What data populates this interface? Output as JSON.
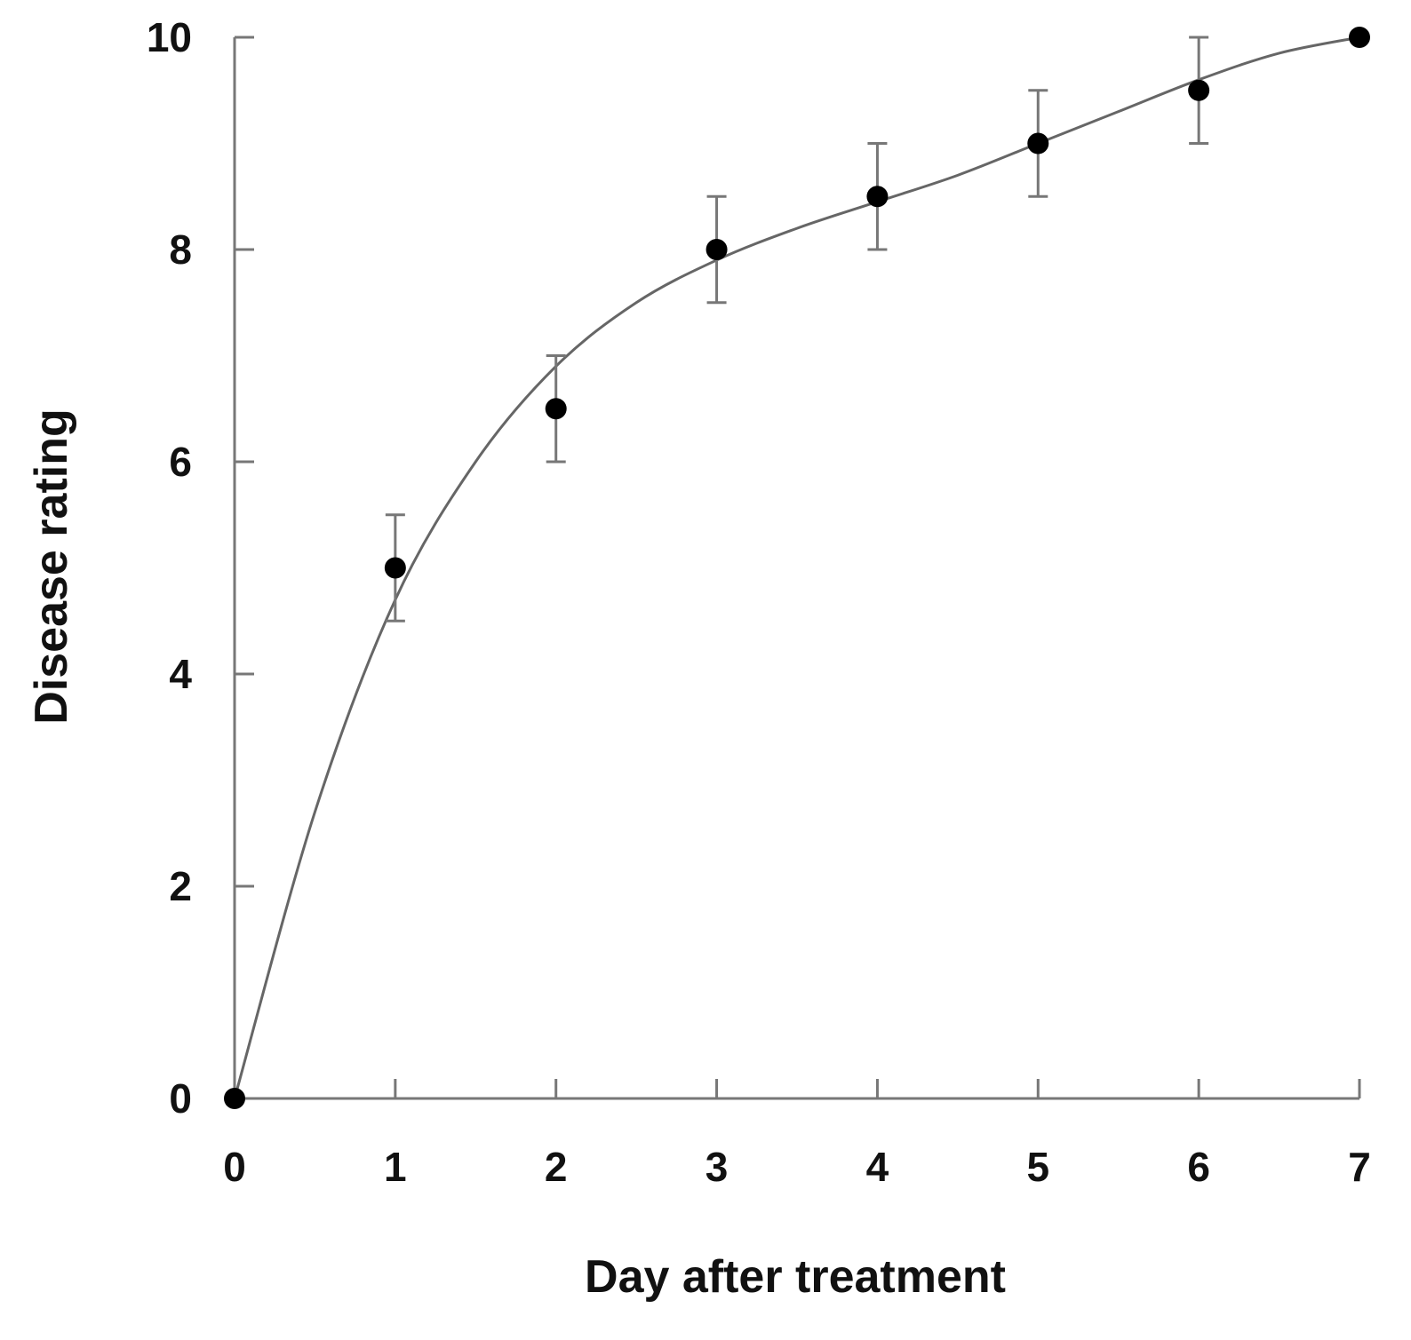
{
  "chart_data": {
    "type": "scatter",
    "title": "",
    "xlabel": "Day after treatment",
    "ylabel": "Disease rating",
    "xlim": [
      0,
      7
    ],
    "ylim": [
      0,
      10
    ],
    "xticks": [
      "0",
      "1",
      "2",
      "3",
      "4",
      "5",
      "6",
      "7"
    ],
    "yticks": [
      "0",
      "2",
      "4",
      "6",
      "8",
      "10"
    ],
    "grid": false,
    "legend": "none",
    "series": [
      {
        "name": "Disease rating",
        "x": [
          0,
          1,
          2,
          3,
          4,
          5,
          6,
          7
        ],
        "y": [
          0,
          5.0,
          6.5,
          8.0,
          8.5,
          9.0,
          9.5,
          10.0
        ],
        "error": [
          0,
          0.5,
          0.5,
          0.5,
          0.5,
          0.5,
          0.5,
          0
        ]
      }
    ],
    "fit_curve": {
      "x": [
        0,
        0.5,
        1,
        1.5,
        2,
        2.5,
        3,
        3.5,
        4,
        4.5,
        5,
        5.5,
        6,
        6.5,
        7
      ],
      "y": [
        0,
        2.7,
        4.7,
        6.0,
        6.9,
        7.5,
        7.9,
        8.2,
        8.45,
        8.7,
        9.0,
        9.3,
        9.6,
        9.85,
        10.0
      ]
    },
    "colors": {
      "axis": "#777777",
      "marker": "#000000",
      "curve": "#666666",
      "text": "#111111"
    }
  }
}
